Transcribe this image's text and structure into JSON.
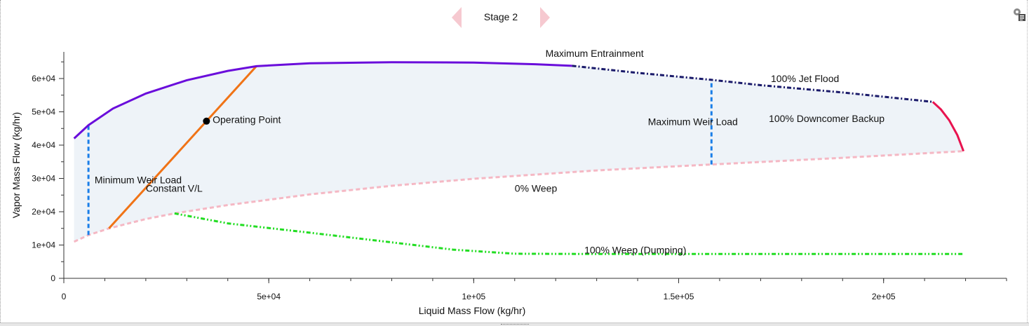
{
  "header": {
    "stage_label": "Stage 2",
    "prev_icon": "chevron-left-icon",
    "next_icon": "chevron-right-icon",
    "corner_icon": "chart-settings-icon"
  },
  "chart_data": {
    "type": "line",
    "xlabel": "Liquid Mass Flow (kg/hr)",
    "ylabel": "Vapor Mass Flow (kg/hr)",
    "xlim": [
      0,
      230000
    ],
    "ylim": [
      0,
      68000
    ],
    "x_ticks": [
      0,
      50000,
      100000,
      150000,
      200000
    ],
    "x_tick_labels": [
      "0",
      "5e+04",
      "1e+05",
      "1.5e+05",
      "2e+05"
    ],
    "x_minor_step": 10000,
    "y_ticks": [
      0,
      10000,
      20000,
      30000,
      40000,
      50000,
      60000
    ],
    "y_tick_labels": [
      "0",
      "1e+04",
      "2e+04",
      "3e+04",
      "4e+04",
      "5e+04",
      "6e+04"
    ],
    "y_minor_step": 5000,
    "grid": false,
    "fill_color": "#eef3f8",
    "series": [
      {
        "name": "Maximum Entrainment",
        "color": "#6a0ddb",
        "dash": "solid",
        "x": [
          2500,
          6000,
          12000,
          20000,
          30000,
          40000,
          47000,
          60000,
          80000,
          100000,
          115000,
          124000
        ],
        "y": [
          42000,
          46000,
          51000,
          55500,
          59500,
          62300,
          63700,
          64600,
          64900,
          64800,
          64300,
          63800
        ]
      },
      {
        "name": "100% Jet Flood",
        "color": "#1a1a6a",
        "dash": "dashdot",
        "x": [
          124000,
          140000,
          158000,
          170000,
          190000,
          212000
        ],
        "y": [
          63800,
          61700,
          59600,
          58000,
          55800,
          53000
        ]
      },
      {
        "name": "100% Downcomer Backup",
        "color": "#e8134f",
        "dash": "solid",
        "x": [
          212000,
          214000,
          216000,
          218000,
          219500
        ],
        "y": [
          53000,
          50700,
          47500,
          43000,
          38200
        ]
      },
      {
        "name": "0% Weep",
        "color": "#f5b8c4",
        "dash": "dash",
        "x": [
          2500,
          6000,
          11000,
          20000,
          27000,
          40000,
          60000,
          80000,
          100000,
          130000,
          158000,
          190000,
          219500
        ],
        "y": [
          11000,
          13000,
          15000,
          17800,
          19500,
          22000,
          25200,
          27800,
          29900,
          32400,
          34200,
          36200,
          38200
        ]
      },
      {
        "name": "100% Weep (Dumping)",
        "color": "#22dd22",
        "dash": "dashdotdot",
        "x": [
          27000,
          40000,
          60000,
          80000,
          95000,
          110000,
          130000,
          160000,
          190000,
          219500
        ],
        "y": [
          19500,
          16500,
          13700,
          10800,
          8600,
          7400,
          7300,
          7300,
          7300,
          7300
        ]
      },
      {
        "name": "Minimum Weir Load",
        "color": "#1a7ee8",
        "dash": "dash",
        "x": [
          6000,
          6000
        ],
        "y": [
          13000,
          46000
        ]
      },
      {
        "name": "Maximum Weir Load",
        "color": "#1a7ee8",
        "dash": "dash",
        "x": [
          158000,
          158000
        ],
        "y": [
          34200,
          59600
        ]
      },
      {
        "name": "Constant V/L",
        "color": "#f07316",
        "dash": "solid",
        "x": [
          11000,
          47000
        ],
        "y": [
          15000,
          63700
        ]
      }
    ],
    "region_left_x": [
      2500,
      2500
    ],
    "region_left_y": [
      11000,
      42000
    ],
    "points": [
      {
        "name": "Operating Point",
        "x": 34800,
        "y": 47200,
        "color": "#000000"
      }
    ],
    "annotations": [
      {
        "text": "Maximum Entrainment",
        "x": 117500,
        "y": 66500
      },
      {
        "text": "100% Jet Flood",
        "x": 172500,
        "y": 59000
      },
      {
        "text": "Maximum Weir Load",
        "x": 142500,
        "y": 46000
      },
      {
        "text": "100% Downcomer Backup",
        "x": 172000,
        "y": 47000
      },
      {
        "text": "Minimum Weir Load",
        "x": 7500,
        "y": 28500
      },
      {
        "text": "Constant V/L",
        "x": 20000,
        "y": 26000
      },
      {
        "text": "0% Weep",
        "x": 110000,
        "y": 26000
      },
      {
        "text": "100% Weep (Dumping)",
        "x": 127000,
        "y": 7500
      },
      {
        "text": "Operating Point",
        "x": 36300,
        "y": 46600
      }
    ]
  }
}
